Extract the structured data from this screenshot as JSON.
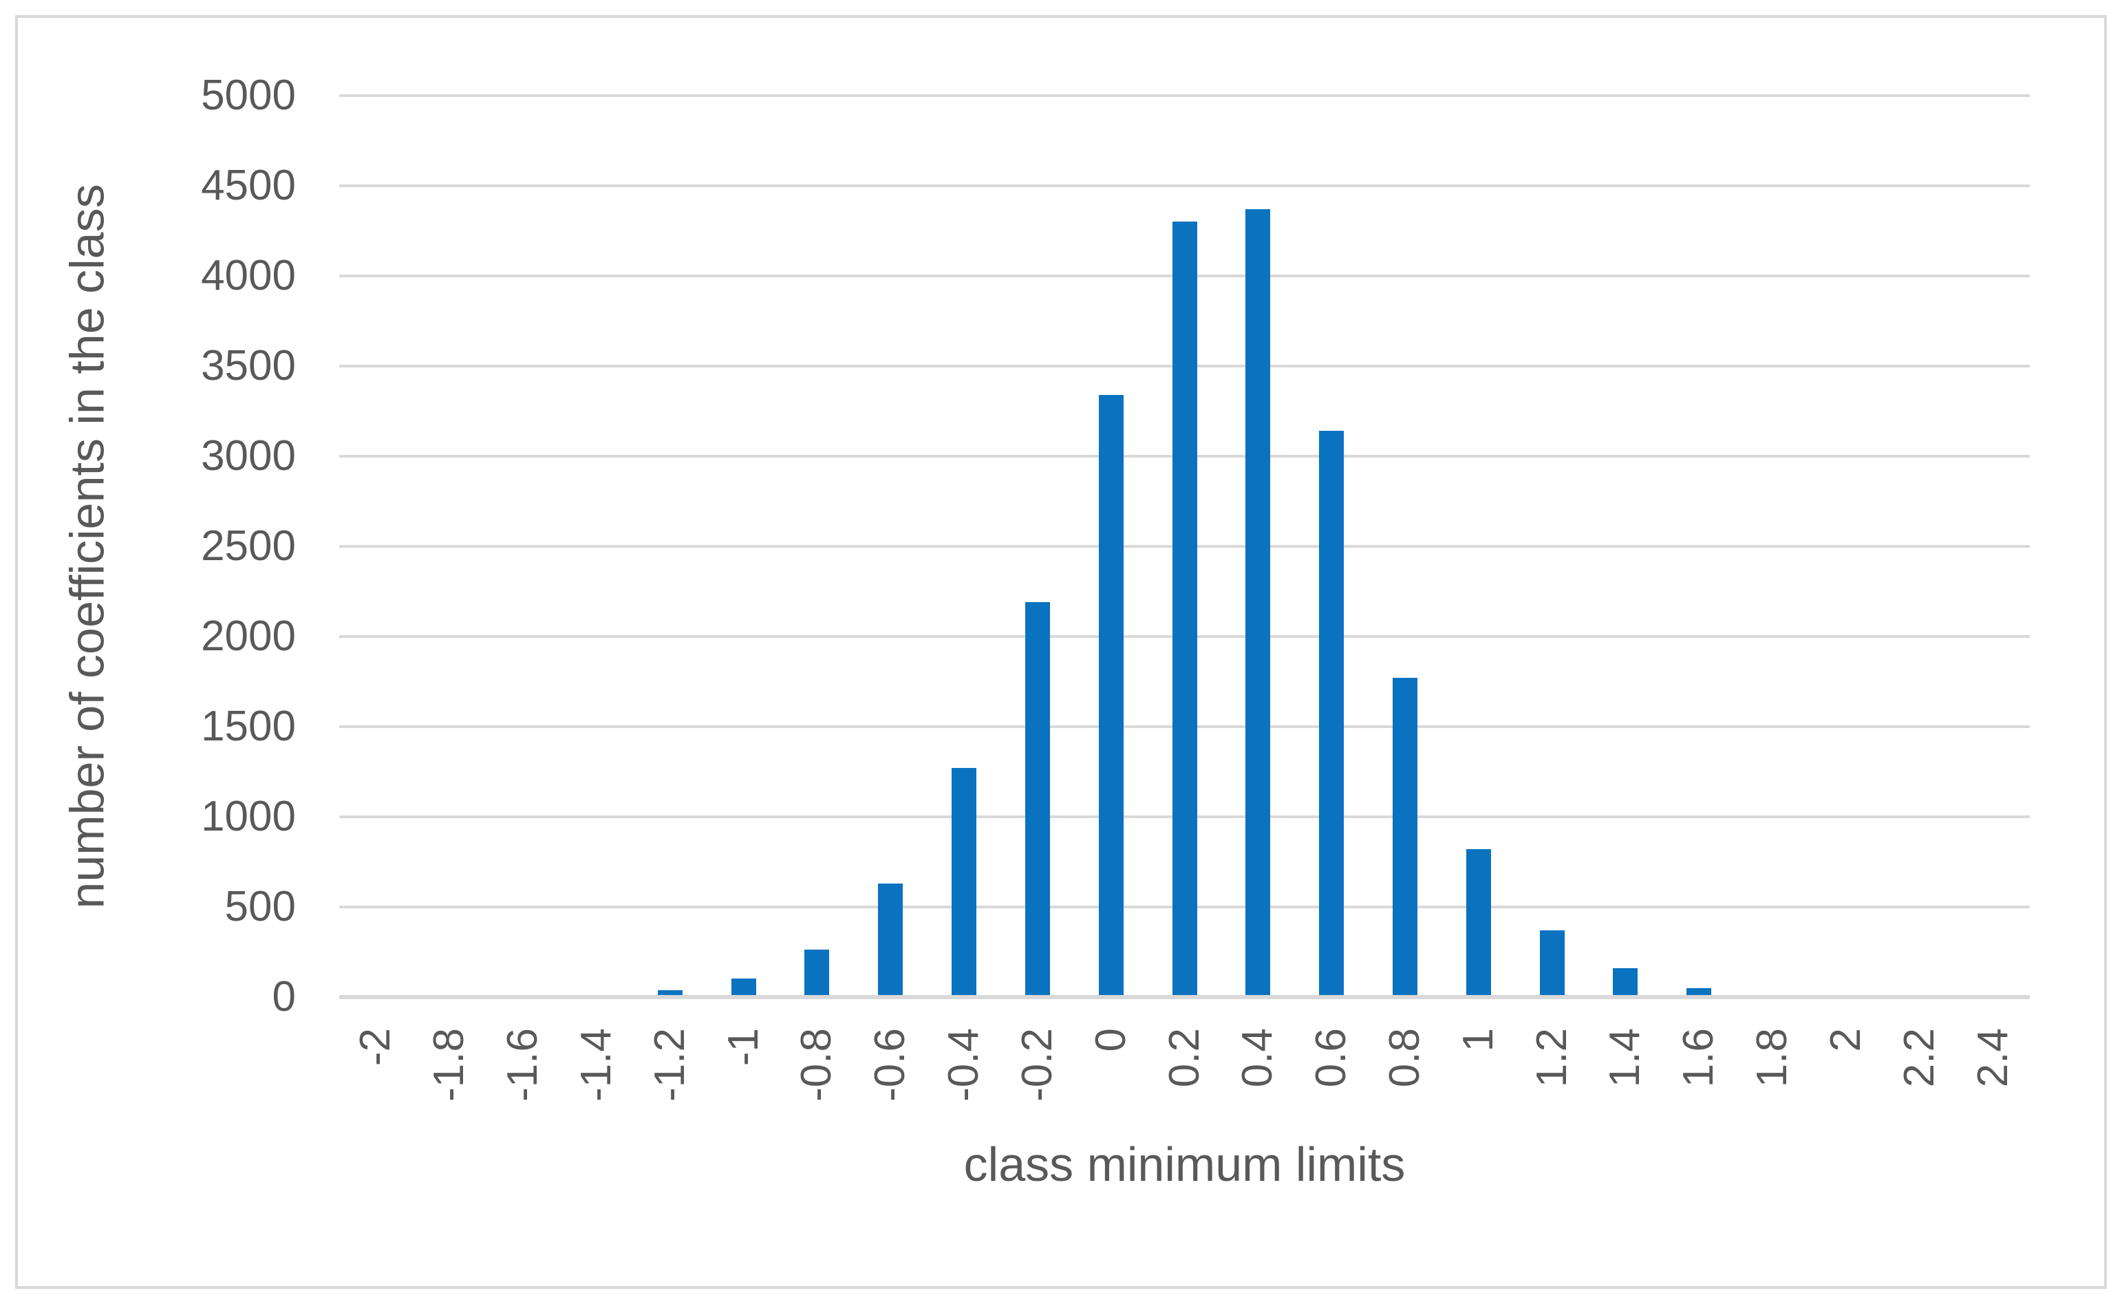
{
  "chart_data": {
    "type": "bar",
    "title": "",
    "xlabel": "class minimum limits",
    "ylabel": "number of coefficients in the class",
    "categories": [
      "-2",
      "-1.8",
      "-1.6",
      "-1.4",
      "-1.2",
      "-1",
      "-0.8",
      "-0.6",
      "-0.4",
      "-0.2",
      "0",
      "0.2",
      "0.4",
      "0.6",
      "0.8",
      "1",
      "1.2",
      "1.4",
      "1.6",
      "1.8",
      "2",
      "2.2",
      "2.4"
    ],
    "values": [
      0,
      0,
      0,
      0,
      25,
      90,
      250,
      620,
      1260,
      2180,
      3330,
      4290,
      4360,
      3130,
      1760,
      810,
      360,
      150,
      40,
      0,
      0,
      0,
      0
    ],
    "yticks": [
      "0",
      "500",
      "1000",
      "1500",
      "2000",
      "2500",
      "3000",
      "3500",
      "4000",
      "4500",
      "5000"
    ],
    "ylim": [
      0,
      5000
    ],
    "x_tick_rotation_deg": -90,
    "grid": "horizontal",
    "legend": "none",
    "colors": {
      "bar": "#0b72c0",
      "gridline": "#d9d9d9",
      "frame_border": "#d9d9d9",
      "text": "#595959",
      "background": "#ffffff"
    }
  }
}
